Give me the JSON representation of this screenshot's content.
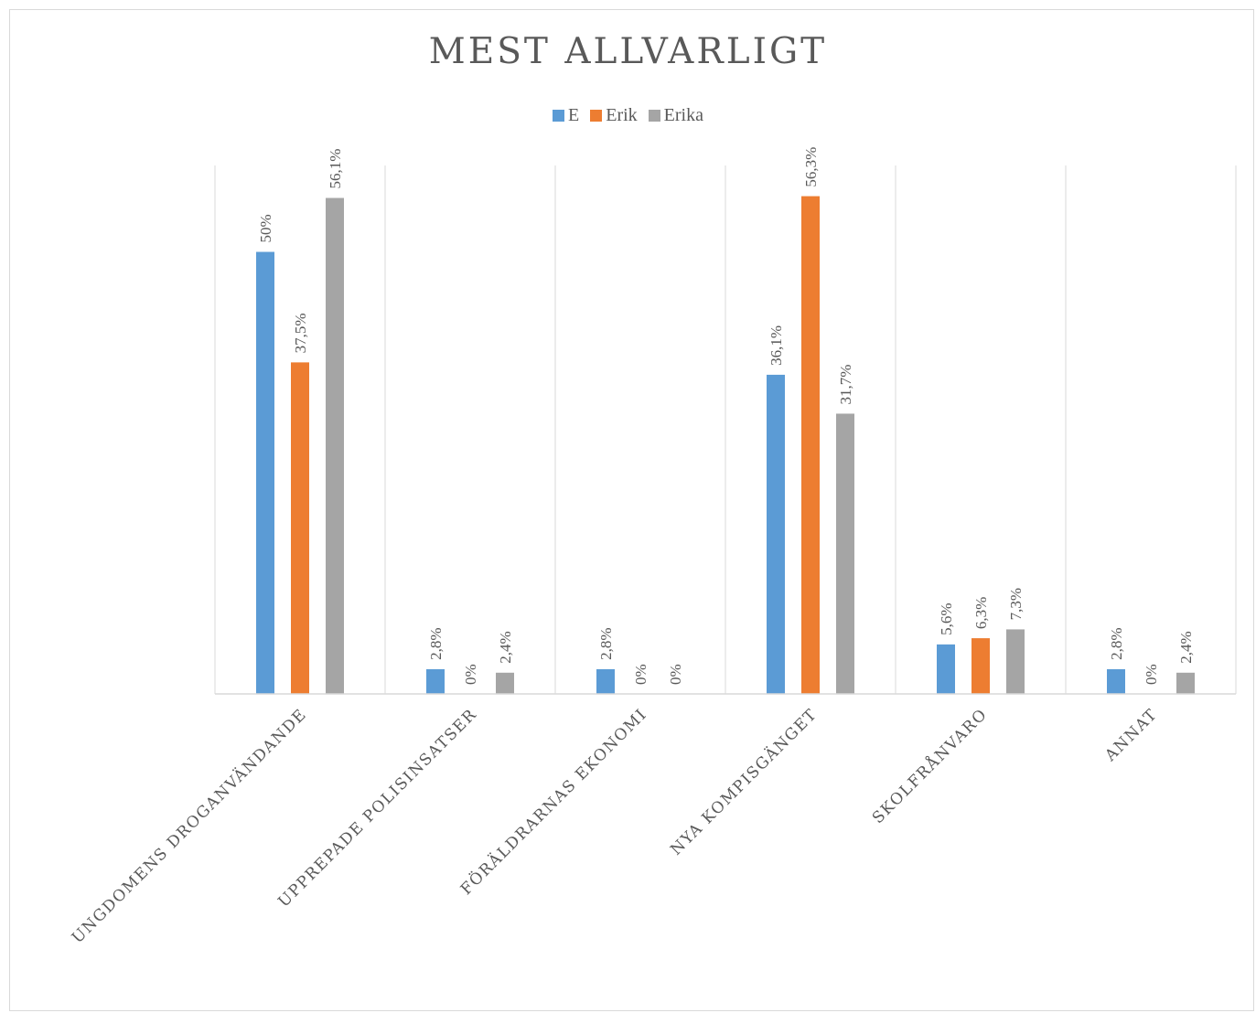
{
  "chart_data": {
    "type": "bar",
    "title": "MEST ALLVARLIGT",
    "categories": [
      "UNGDOMENS DROGANVÄNDANDE",
      "UPPREPADE POLISINSATSER",
      "FÖRÄLDRARNAS EKONOMI",
      "NYA KOMPISGÄNGET",
      "SKOLFRÅNVARO",
      "ANNAT"
    ],
    "series": [
      {
        "name": "E",
        "color": "#5b9bd5",
        "values": [
          50,
          2.8,
          2.8,
          36.1,
          5.6,
          2.8
        ],
        "labels": [
          "50%",
          "2,8%",
          "2,8%",
          "36,1%",
          "5,6%",
          "2,8%"
        ]
      },
      {
        "name": "Erik",
        "color": "#ed7d31",
        "values": [
          37.5,
          0,
          0,
          56.3,
          6.3,
          0
        ],
        "labels": [
          "37,5%",
          "0%",
          "0%",
          "56,3%",
          "6,3%",
          "0%"
        ]
      },
      {
        "name": "Erika",
        "color": "#a5a5a5",
        "values": [
          56.1,
          2.4,
          0,
          31.7,
          7.3,
          2.4
        ],
        "labels": [
          "56,1%",
          "2,4%",
          "0%",
          "31,7%",
          "7,3%",
          "2,4%"
        ]
      }
    ],
    "ylim": [
      0,
      60
    ],
    "grid": "vertical",
    "legend": "top-center"
  }
}
